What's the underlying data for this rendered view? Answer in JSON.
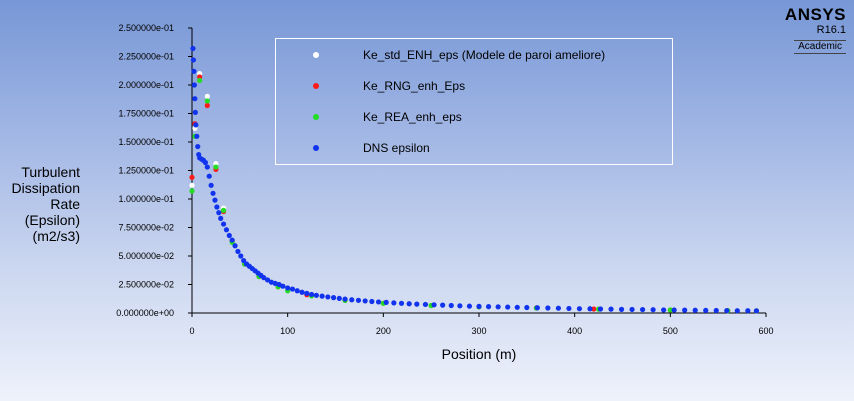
{
  "brand": {
    "name": "ANSYS",
    "version": "R16.1",
    "edition": "Academic"
  },
  "chart_data": {
    "type": "scatter",
    "xlabel": "Position (m)",
    "ylabel": "Turbulent\nDissipation\nRate\n(Epsilon)\n(m2/s3)",
    "xlim": [
      0,
      600
    ],
    "ylim": [
      0,
      0.25
    ],
    "x_ticks": [
      0,
      100,
      200,
      300,
      400,
      500,
      600
    ],
    "x_tick_labels": [
      "0",
      "100",
      "200",
      "300",
      "400",
      "500",
      "600"
    ],
    "y_ticks": [
      0,
      0.025,
      0.05,
      0.075,
      0.1,
      0.125,
      0.15,
      0.175,
      0.2,
      0.225,
      0.25
    ],
    "y_tick_labels": [
      "0.000000e+00",
      "2.500000e-02",
      "5.000000e-02",
      "7.500000e-02",
      "1.000000e-01",
      "1.250000e-01",
      "1.500000e-01",
      "1.750000e-01",
      "2.000000e-01",
      "2.250000e-01",
      "2.500000e-01"
    ],
    "grid": false,
    "legend_position": "top",
    "series": [
      {
        "name": "Ke_std_ENH_eps (Modele de paroi ameliore)",
        "color": "#ffffff",
        "points": [
          [
            0,
            0.112
          ],
          [
            3,
            0.162
          ],
          [
            8,
            0.21
          ],
          [
            16,
            0.19
          ],
          [
            25,
            0.131
          ],
          [
            33,
            0.092
          ],
          [
            42,
            0.064
          ],
          [
            55,
            0.044
          ],
          [
            70,
            0.033
          ],
          [
            90,
            0.024
          ],
          [
            120,
            0.0165
          ],
          [
            160,
            0.0115
          ],
          [
            200,
            0.0088
          ],
          [
            250,
            0.0068
          ],
          [
            300,
            0.0056
          ],
          [
            360,
            0.0046
          ],
          [
            420,
            0.0036
          ],
          [
            500,
            0.0027
          ],
          [
            560,
            0.0022
          ],
          [
            590,
            0.002
          ]
        ]
      },
      {
        "name": "Ke_RNG_enh_Eps",
        "color": "#ff1a1a",
        "points": [
          [
            0,
            0.119
          ],
          [
            3,
            0.166
          ],
          [
            8,
            0.207
          ],
          [
            16,
            0.182
          ],
          [
            25,
            0.126
          ],
          [
            33,
            0.089
          ],
          [
            42,
            0.063
          ],
          [
            55,
            0.043
          ],
          [
            70,
            0.032
          ],
          [
            90,
            0.023
          ],
          [
            120,
            0.016
          ],
          [
            160,
            0.0112
          ],
          [
            200,
            0.0086
          ],
          [
            250,
            0.0066
          ],
          [
            300,
            0.0054
          ],
          [
            360,
            0.0045
          ],
          [
            420,
            0.0035
          ],
          [
            500,
            0.0026
          ],
          [
            560,
            0.0021
          ],
          [
            590,
            0.0019
          ]
        ]
      },
      {
        "name": "Ke_REA_enh_eps",
        "color": "#22dd22",
        "points": [
          [
            0,
            0.107
          ],
          [
            3,
            0.155
          ],
          [
            8,
            0.204
          ],
          [
            16,
            0.186
          ],
          [
            25,
            0.128
          ],
          [
            33,
            0.09
          ],
          [
            42,
            0.062
          ],
          [
            55,
            0.043
          ],
          [
            70,
            0.032
          ],
          [
            90,
            0.023
          ],
          [
            100,
            0.0195
          ],
          [
            125,
            0.015
          ],
          [
            160,
            0.011
          ],
          [
            200,
            0.0085
          ],
          [
            250,
            0.0066
          ],
          [
            300,
            0.0054
          ],
          [
            360,
            0.0044
          ],
          [
            425,
            0.0034
          ],
          [
            500,
            0.0026
          ],
          [
            560,
            0.0021
          ],
          [
            590,
            0.0019
          ]
        ]
      },
      {
        "name": "DNS epsilon",
        "color": "#1133ee",
        "points": [
          [
            1,
            0.232
          ],
          [
            1.5,
            0.222
          ],
          [
            2,
            0.212
          ],
          [
            2.5,
            0.2
          ],
          [
            3,
            0.188
          ],
          [
            3.5,
            0.176
          ],
          [
            4,
            0.165
          ],
          [
            5,
            0.155
          ],
          [
            6,
            0.146
          ],
          [
            7,
            0.139
          ],
          [
            8,
            0.136
          ],
          [
            10,
            0.135
          ],
          [
            12,
            0.134
          ],
          [
            14,
            0.132
          ],
          [
            16,
            0.128
          ],
          [
            18,
            0.12
          ],
          [
            20,
            0.112
          ],
          [
            22,
            0.105
          ],
          [
            24,
            0.099
          ],
          [
            26,
            0.093
          ],
          [
            28,
            0.088
          ],
          [
            30,
            0.083
          ],
          [
            33,
            0.078
          ],
          [
            36,
            0.073
          ],
          [
            39,
            0.068
          ],
          [
            42,
            0.064
          ],
          [
            45,
            0.059
          ],
          [
            48,
            0.054
          ],
          [
            51,
            0.05
          ],
          [
            54,
            0.046
          ],
          [
            57,
            0.043
          ],
          [
            60,
            0.041
          ],
          [
            63,
            0.039
          ],
          [
            66,
            0.037
          ],
          [
            69,
            0.035
          ],
          [
            72,
            0.033
          ],
          [
            75,
            0.031
          ],
          [
            79,
            0.029
          ],
          [
            83,
            0.027
          ],
          [
            87,
            0.026
          ],
          [
            91,
            0.025
          ],
          [
            95,
            0.0235
          ],
          [
            100,
            0.022
          ],
          [
            105,
            0.021
          ],
          [
            110,
            0.0195
          ],
          [
            115,
            0.0182
          ],
          [
            120,
            0.0172
          ],
          [
            125,
            0.0163
          ],
          [
            130,
            0.0155
          ],
          [
            136,
            0.0148
          ],
          [
            142,
            0.0141
          ],
          [
            148,
            0.0135
          ],
          [
            154,
            0.0128
          ],
          [
            160,
            0.0122
          ],
          [
            167,
            0.0116
          ],
          [
            174,
            0.0111
          ],
          [
            181,
            0.0106
          ],
          [
            188,
            0.0101
          ],
          [
            195,
            0.0097
          ],
          [
            203,
            0.0093
          ],
          [
            211,
            0.0089
          ],
          [
            219,
            0.0085
          ],
          [
            227,
            0.0081
          ],
          [
            235,
            0.0078
          ],
          [
            244,
            0.0075
          ],
          [
            253,
            0.0072
          ],
          [
            262,
            0.0069
          ],
          [
            271,
            0.0066
          ],
          [
            280,
            0.0063
          ],
          [
            290,
            0.006
          ],
          [
            300,
            0.0058
          ],
          [
            310,
            0.0056
          ],
          [
            320,
            0.0054
          ],
          [
            330,
            0.0052
          ],
          [
            340,
            0.005
          ],
          [
            350,
            0.0048
          ],
          [
            361,
            0.0046
          ],
          [
            372,
            0.0044
          ],
          [
            383,
            0.0042
          ],
          [
            394,
            0.004
          ],
          [
            405,
            0.0038
          ],
          [
            416,
            0.0037
          ],
          [
            427,
            0.0035
          ],
          [
            438,
            0.0034
          ],
          [
            449,
            0.0032
          ],
          [
            460,
            0.0031
          ],
          [
            471,
            0.003
          ],
          [
            482,
            0.0029
          ],
          [
            493,
            0.0027
          ],
          [
            504,
            0.0026
          ],
          [
            515,
            0.0025
          ],
          [
            526,
            0.0024
          ],
          [
            537,
            0.0023
          ],
          [
            548,
            0.0022
          ],
          [
            559,
            0.0021
          ],
          [
            570,
            0.002
          ],
          [
            581,
            0.002
          ],
          [
            590,
            0.0019
          ]
        ]
      }
    ]
  }
}
